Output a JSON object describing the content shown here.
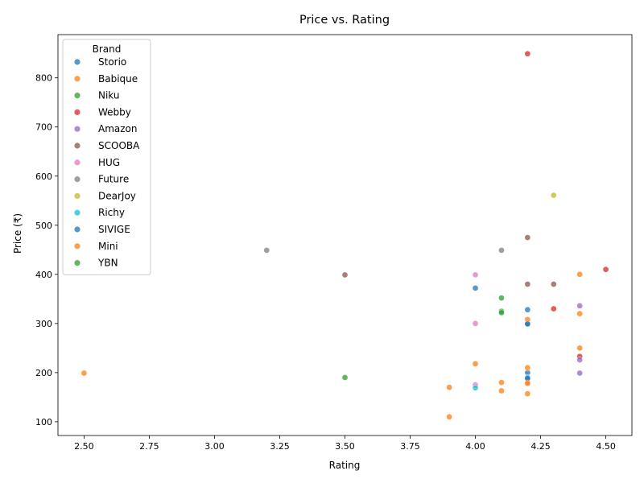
{
  "chart_data": {
    "type": "scatter",
    "title": "Price vs. Rating",
    "xlabel": "Rating",
    "ylabel": "Price (₹)",
    "xlim": [
      2.4,
      4.6
    ],
    "ylim": [
      72,
      888
    ],
    "xticks": [
      2.5,
      2.75,
      3.0,
      3.25,
      3.5,
      3.75,
      4.0,
      4.25,
      4.5
    ],
    "xtick_labels": [
      "2.50",
      "2.75",
      "3.00",
      "3.25",
      "3.50",
      "3.75",
      "4.00",
      "4.25",
      "4.50"
    ],
    "yticks": [
      100,
      200,
      300,
      400,
      500,
      600,
      700,
      800
    ],
    "ytick_labels": [
      "100",
      "200",
      "300",
      "400",
      "500",
      "600",
      "700",
      "800"
    ],
    "grid": false,
    "legend": {
      "title": "Brand",
      "placement": "top-left"
    },
    "series": [
      {
        "name": "Storio",
        "color": "#1f77b4",
        "points": [
          [
            4.0,
            372
          ],
          [
            4.2,
            328
          ],
          [
            4.2,
            300
          ],
          [
            4.2,
            200
          ],
          [
            4.2,
            190
          ]
        ]
      },
      {
        "name": "Babique",
        "color": "#ff7f0e",
        "points": [
          [
            2.5,
            199
          ],
          [
            3.9,
            170
          ],
          [
            3.9,
            110
          ],
          [
            4.0,
            218
          ],
          [
            4.1,
            180
          ],
          [
            4.1,
            163
          ],
          [
            4.2,
            308
          ],
          [
            4.2,
            210
          ],
          [
            4.2,
            180
          ],
          [
            4.2,
            157
          ],
          [
            4.4,
            400
          ],
          [
            4.4,
            320
          ],
          [
            4.4,
            250
          ]
        ]
      },
      {
        "name": "Niku",
        "color": "#2ca02c",
        "points": [
          [
            4.1,
            352
          ],
          [
            4.1,
            325
          ]
        ]
      },
      {
        "name": "Webby",
        "color": "#d62728",
        "points": [
          [
            4.2,
            849
          ],
          [
            4.3,
            330
          ],
          [
            4.4,
            233
          ],
          [
            4.5,
            410
          ]
        ]
      },
      {
        "name": "Amazon",
        "color": "#9467bd",
        "points": [
          [
            4.4,
            336
          ],
          [
            4.4,
            226
          ],
          [
            4.4,
            199
          ]
        ]
      },
      {
        "name": "SCOOBA",
        "color": "#8c564b",
        "points": [
          [
            3.5,
            399
          ],
          [
            4.2,
            475
          ],
          [
            4.2,
            380
          ],
          [
            4.3,
            380
          ]
        ]
      },
      {
        "name": "HUG",
        "color": "#e377c2",
        "points": [
          [
            4.0,
            399
          ],
          [
            4.0,
            300
          ],
          [
            4.0,
            175
          ]
        ]
      },
      {
        "name": "Future",
        "color": "#7f7f7f",
        "points": [
          [
            3.2,
            449
          ],
          [
            4.1,
            449
          ]
        ]
      },
      {
        "name": "DearJoy",
        "color": "#bcbd22",
        "points": [
          [
            4.3,
            561
          ]
        ]
      },
      {
        "name": "Richy",
        "color": "#17becf",
        "points": [
          [
            4.0,
            169
          ]
        ]
      },
      {
        "name": "SIVIGE",
        "color": "#1f77b4",
        "points": [
          [
            4.2,
            299
          ],
          [
            4.2,
            188
          ]
        ]
      },
      {
        "name": "Mini",
        "color": "#ff7f0e",
        "points": [
          [
            4.2,
            178
          ]
        ]
      },
      {
        "name": "YBN",
        "color": "#2ca02c",
        "points": [
          [
            3.5,
            190
          ],
          [
            4.1,
            322
          ]
        ]
      }
    ]
  }
}
